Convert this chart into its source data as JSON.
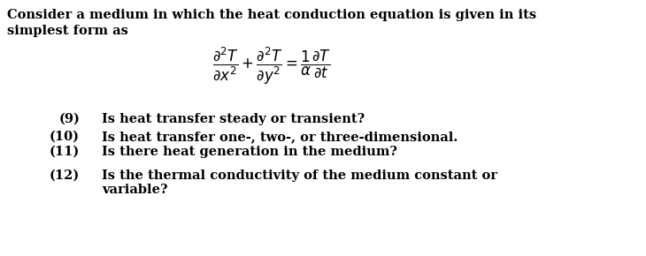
{
  "bg_color": "#ffffff",
  "text_color": "#000000",
  "line1": "Consider a medium in which the heat conduction equation is given in its",
  "line2": "simplest form as",
  "equation": "$\\dfrac{\\partial^2 T}{\\partial x^2}+\\dfrac{\\partial^2 T}{\\partial y^2}=\\dfrac{1}{\\alpha}\\dfrac{\\partial T}{\\partial t}$",
  "items": [
    [
      "(9)",
      "Is heat transfer steady or transient?"
    ],
    [
      "(10)",
      "Is heat transfer one-, two-, or three-dimensional."
    ],
    [
      "(11)",
      "Is there heat generation in the medium?"
    ],
    [
      "(12)",
      "Is the thermal conductivity of the medium constant or\nvariable?"
    ]
  ],
  "title_fontsize": 10.5,
  "eq_fontsize": 12,
  "item_fontsize": 10.5,
  "fig_width": 7.3,
  "fig_height": 2.9,
  "dpi": 100
}
